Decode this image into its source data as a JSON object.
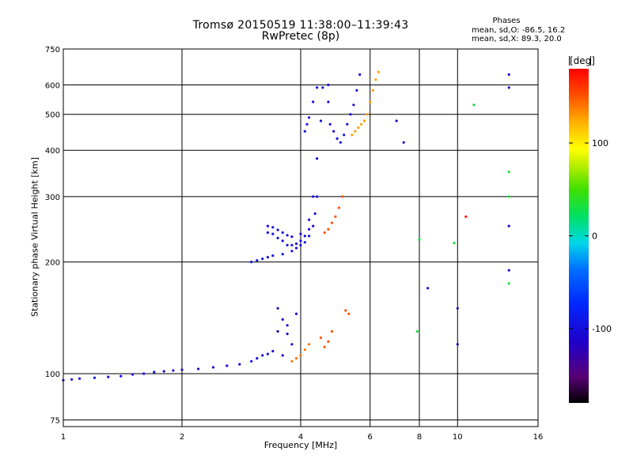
{
  "chart_data": {
    "type": "scatter",
    "title": "Tromsø 20150519 11:38:00–11:39:43",
    "subtitle": "RwPretec (8p)",
    "xlabel": "Frequency [MHz]",
    "ylabel": "Stationary phase Virtual Height [km]",
    "x_scale": "log",
    "y_scale": "log",
    "xlim": [
      1,
      16
    ],
    "ylim": [
      72,
      750
    ],
    "x_ticks": [
      "1",
      "2",
      "4",
      "6",
      "8",
      "10",
      "16"
    ],
    "x_tick_values": [
      1,
      2,
      4,
      6,
      8,
      10,
      16
    ],
    "y_ticks": [
      "75",
      "100",
      "200",
      "300",
      "400",
      "500",
      "600",
      "750"
    ],
    "y_tick_values": [
      75,
      100,
      200,
      300,
      400,
      500,
      600,
      750
    ],
    "grid": true,
    "phases": {
      "title": "Phases",
      "o_line": "mean, sd,O: -86.5, 16.2",
      "x_line": "mean, sd,X:  89.3, 20.0"
    },
    "colorbar": {
      "unit": "[deg]",
      "ticks": [
        "100",
        "0",
        "-100"
      ],
      "tick_values": [
        100,
        0,
        -100
      ],
      "range": [
        -180,
        180
      ]
    },
    "traces": [
      {
        "color_phase": -100,
        "points": [
          [
            1.0,
            96
          ],
          [
            1.05,
            96.5
          ],
          [
            1.1,
            97
          ],
          [
            1.2,
            97.5
          ],
          [
            1.3,
            98
          ],
          [
            1.4,
            98.5
          ],
          [
            1.5,
            99.5
          ],
          [
            1.6,
            100
          ],
          [
            1.7,
            101
          ],
          [
            1.8,
            101.5
          ],
          [
            1.9,
            102
          ],
          [
            2.0,
            102.5
          ],
          [
            2.2,
            103
          ],
          [
            2.4,
            104
          ],
          [
            2.6,
            105
          ],
          [
            2.8,
            106
          ],
          [
            3.0,
            108
          ],
          [
            3.1,
            110
          ],
          [
            3.2,
            112
          ],
          [
            3.3,
            113
          ]
        ]
      },
      {
        "color_phase": -100,
        "points": [
          [
            3.0,
            200
          ],
          [
            3.1,
            202
          ],
          [
            3.2,
            204
          ],
          [
            3.3,
            206
          ],
          [
            3.4,
            208
          ],
          [
            3.6,
            210
          ],
          [
            3.8,
            214
          ],
          [
            3.9,
            218
          ],
          [
            4.0,
            222
          ],
          [
            4.1,
            226
          ],
          [
            4.2,
            235
          ],
          [
            4.3,
            250
          ],
          [
            4.35,
            270
          ],
          [
            4.4,
            300
          ]
        ]
      },
      {
        "color_phase": -100,
        "points": [
          [
            3.3,
            240
          ],
          [
            3.4,
            238
          ],
          [
            3.5,
            232
          ],
          [
            3.6,
            228
          ],
          [
            3.7,
            222
          ],
          [
            3.8,
            222
          ],
          [
            3.9,
            224
          ],
          [
            4.0,
            228
          ],
          [
            4.1,
            235
          ],
          [
            4.2,
            245
          ]
        ]
      },
      {
        "color_phase": -100,
        "points": [
          [
            3.3,
            250
          ],
          [
            3.4,
            248
          ],
          [
            3.5,
            244
          ],
          [
            3.6,
            240
          ],
          [
            3.7,
            236
          ],
          [
            3.8,
            234
          ],
          [
            4.0,
            238
          ],
          [
            4.2,
            260
          ],
          [
            4.3,
            300
          ],
          [
            4.4,
            380
          ],
          [
            4.5,
            480
          ],
          [
            4.55,
            590
          ]
        ]
      },
      {
        "color_phase": -100,
        "points": [
          [
            4.7,
            600
          ],
          [
            4.7,
            540
          ],
          [
            4.75,
            470
          ],
          [
            4.85,
            450
          ],
          [
            4.95,
            430
          ],
          [
            5.05,
            420
          ],
          [
            5.15,
            440
          ],
          [
            5.25,
            470
          ],
          [
            5.35,
            500
          ],
          [
            5.45,
            530
          ],
          [
            5.55,
            580
          ],
          [
            5.65,
            640
          ]
        ]
      },
      {
        "color_phase": -100,
        "points": [
          [
            4.1,
            450
          ],
          [
            4.15,
            470
          ],
          [
            4.2,
            490
          ],
          [
            4.3,
            540
          ],
          [
            4.4,
            590
          ]
        ]
      },
      {
        "color_phase": 150,
        "points": [
          [
            4.6,
            240
          ],
          [
            4.7,
            245
          ],
          [
            4.8,
            255
          ],
          [
            4.9,
            265
          ],
          [
            5.0,
            280
          ],
          [
            5.1,
            300
          ]
        ]
      },
      {
        "color_phase": 130,
        "points": [
          [
            5.4,
            440
          ],
          [
            5.5,
            450
          ],
          [
            5.6,
            460
          ],
          [
            5.7,
            470
          ],
          [
            5.8,
            480
          ],
          [
            5.9,
            500
          ],
          [
            6.0,
            540
          ],
          [
            6.1,
            580
          ],
          [
            6.2,
            620
          ],
          [
            6.3,
            650
          ]
        ]
      },
      {
        "color_phase": -110,
        "points": [
          [
            3.4,
            115
          ],
          [
            3.5,
            130
          ],
          [
            3.6,
            140
          ],
          [
            3.7,
            128
          ],
          [
            3.8,
            120
          ],
          [
            3.9,
            145
          ],
          [
            3.5,
            150
          ],
          [
            3.6,
            112
          ],
          [
            3.7,
            135
          ]
        ]
      },
      {
        "color_phase": 140,
        "points": [
          [
            3.8,
            108
          ],
          [
            3.9,
            110
          ],
          [
            4.0,
            112
          ],
          [
            4.1,
            116
          ],
          [
            4.2,
            120
          ]
        ]
      },
      {
        "color_phase": 150,
        "points": [
          [
            4.5,
            125
          ],
          [
            4.6,
            118
          ],
          [
            4.7,
            122
          ],
          [
            4.8,
            130
          ],
          [
            5.2,
            148
          ],
          [
            5.3,
            145
          ]
        ]
      },
      {
        "color_phase": -120,
        "points": [
          [
            7.0,
            480
          ],
          [
            7.3,
            420
          ],
          [
            8.4,
            170
          ],
          [
            10.0,
            150
          ],
          [
            10.0,
            120
          ],
          [
            13.5,
            640
          ],
          [
            13.5,
            590
          ],
          [
            13.5,
            250
          ],
          [
            13.5,
            190
          ]
        ]
      },
      {
        "color_phase": 30,
        "points": [
          [
            8.0,
            230
          ],
          [
            7.9,
            130
          ],
          [
            9.8,
            225
          ],
          [
            11.0,
            530
          ],
          [
            13.5,
            350
          ],
          [
            13.5,
            300
          ],
          [
            13.5,
            175
          ]
        ]
      },
      {
        "color_phase": 170,
        "points": [
          [
            10.5,
            265
          ]
        ]
      }
    ]
  }
}
